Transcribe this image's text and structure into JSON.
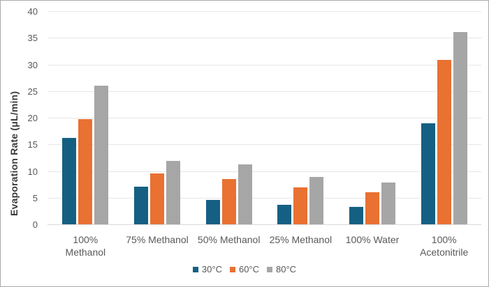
{
  "figure": {
    "background": "#FFFFFF",
    "border_color": "#ABABAB"
  },
  "styles": {
    "grid_color": "#E6E6E6",
    "axis_line_color": "#D9D9D9",
    "tick_label_color": "#595959",
    "axis_title_color": "#3B3B3B"
  },
  "chart_data": {
    "type": "bar",
    "ylabel": "Evaporation Rate (μL/min)",
    "xlabel": "",
    "ylim": [
      0,
      40
    ],
    "ytick_step": 5,
    "yticks": [
      0,
      5,
      10,
      15,
      20,
      25,
      30,
      35,
      40
    ],
    "grid": "horizontal",
    "legend_position": "bottom",
    "categories": [
      "100% Methanol",
      "75% Methanol",
      "50% Methanol",
      "25% Methanol",
      "100% Water",
      "100% Acetonitrile"
    ],
    "series": [
      {
        "name": "30°C",
        "color": "#156082",
        "values": [
          16.2,
          7.0,
          4.6,
          3.7,
          3.3,
          18.9
        ]
      },
      {
        "name": "60°C",
        "color": "#E97132",
        "values": [
          19.8,
          9.5,
          8.5,
          6.9,
          6.0,
          30.8
        ]
      },
      {
        "name": "80°C",
        "color": "#A6A6A6",
        "values": [
          26.0,
          11.9,
          11.2,
          8.9,
          7.8,
          36.1
        ]
      }
    ]
  }
}
